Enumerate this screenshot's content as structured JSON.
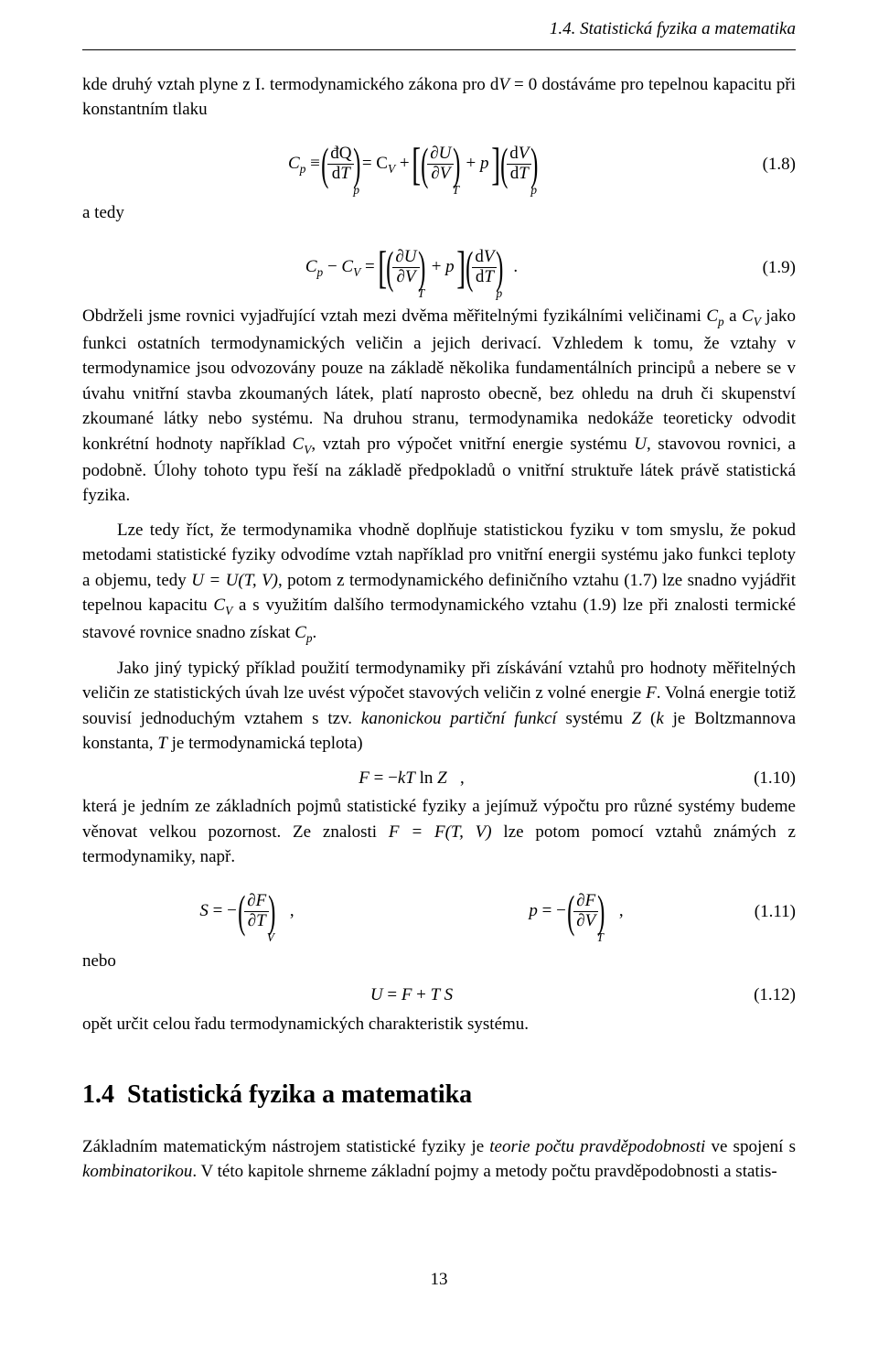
{
  "runhead": "1.4. Statistická fyzika a matematika",
  "para1_a": "kde druhý vztah plyne z I. termodynamického zákona pro ",
  "para1_b": " dostáváme pro tepelnou kapacitu při konstantním tlaku",
  "dV0": "dV = 0",
  "a_tedy": "a tedy",
  "eq_1_8_num": "(1.8)",
  "eq_1_9_num": "(1.9)",
  "para2_a": "Obdrželi jsme rovnici vyjadřující vztah mezi dvěma měřitelnými fyzikálními veličinami ",
  "var_Cp": "C",
  "var_CV": "C",
  "sub_p": "p",
  "sub_V": "V",
  "para2_b": " a ",
  "para2_c": " jako funkci ostatních termodynamických veličin a jejich derivací. Vzhledem k tomu, že vztahy v termodynamice jsou odvozovány pouze na základě několika fundamentálních principů a nebere se v úvahu vnitřní stavba zkoumaných látek, platí naprosto obecně, bez ohledu na druh či skupenství zkoumané látky nebo systému. Na druhou stranu, termodynamika nedokáže teoreticky odvodit konkrétní hodnoty například ",
  "para2_d": ", vztah pro výpočet vnitřní energie systému ",
  "var_U": "U",
  "para2_e": ", stavovou rovnici, a podobně. Úlohy tohoto typu řeší na základě předpokladů o vnitřní struktuře látek právě statistická fyzika.",
  "para3_a": "Lze tedy říct, že termodynamika vhodně doplňuje statistickou fyziku v tom smyslu, že pokud metodami statistické fyziky odvodíme vztah například pro vnitřní energii systému jako funkci teploty a objemu, tedy ",
  "U_TV": "U = U(T, V)",
  "para3_b": ", potom z termodynamického definičního vztahu (1.7) lze snadno vyjádřit tepelnou kapacitu ",
  "para3_c": " a s využitím dalšího termodynamického vztahu (1.9) lze při znalosti termické stavové rovnice snadno získat ",
  "para3_d": ".",
  "para4_a": "Jako jiný typický příklad použití termodynamiky při získávání vztahů pro hodnoty měřitelných veličin ze statistických úvah lze uvést výpočet stavových veličin z volné energie ",
  "var_F": "F",
  "para4_b": ". Volná energie totiž souvisí jednoduchým vztahem s tzv. ",
  "italic_kanon": "kanonickou partiční funkcí",
  "para4_c": " systému ",
  "var_Z": "Z",
  "para4_d": " (",
  "var_k": "k",
  "para4_e": " je Boltzmannova konstanta, ",
  "var_T": "T",
  "para4_f": " je termodynamická teplota)",
  "eq_1_10_num": "(1.10)",
  "eq_1_10": "F = −kT ln Z    ,",
  "para5_a": "která je jedním ze základních pojmů statistické fyziky a jejímuž výpočtu pro různé systémy budeme věnovat velkou pozornost. Ze znalosti ",
  "F_TV": "F = F(T, V)",
  "para5_b": " lze potom pomocí vztahů známých z termodynamiky, např.",
  "eq_1_11_num": "(1.11)",
  "nebo": "nebo",
  "eq_1_12_num": "(1.12)",
  "eq_1_12": "U = F + TS",
  "para6": "opět určit celou řadu termodynamických charakteristik systému.",
  "section_num": "1.4",
  "section_title": "Statistická fyzika a matematika",
  "para7_a": "Základním matematickým nástrojem statistické fyziky je ",
  "italic_teorie": "teorie počtu pravděpodobnosti",
  "para7_b": " ve spojení s ",
  "italic_komb": "kombinatorikou",
  "para7_c": ". V této kapitole shrneme základní pojmy a metody počtu pravděpodobnosti a statis-",
  "page_number": "13",
  "frac_dQ": "đQ",
  "frac_dT": "dT",
  "frac_dU_top": "∂U",
  "frac_dU_bot": "∂V",
  "frac_dV_top": "dV",
  "frac_dV_bot": "dT",
  "frac_dF_top": "∂F",
  "frac_dFT_bot": "∂T",
  "frac_dFV_bot": "∂V",
  "plus_p": "+ p",
  "S_eq": "S = −",
  "p_eq": "p = −",
  "comma": ",",
  "period": ".",
  "Cp_equiv": " ≡ ",
  "eq_CV_plus": " = C",
  "plus_sign": " + ",
  "minus_sign": " − ",
  "CpCV_eq": " = "
}
